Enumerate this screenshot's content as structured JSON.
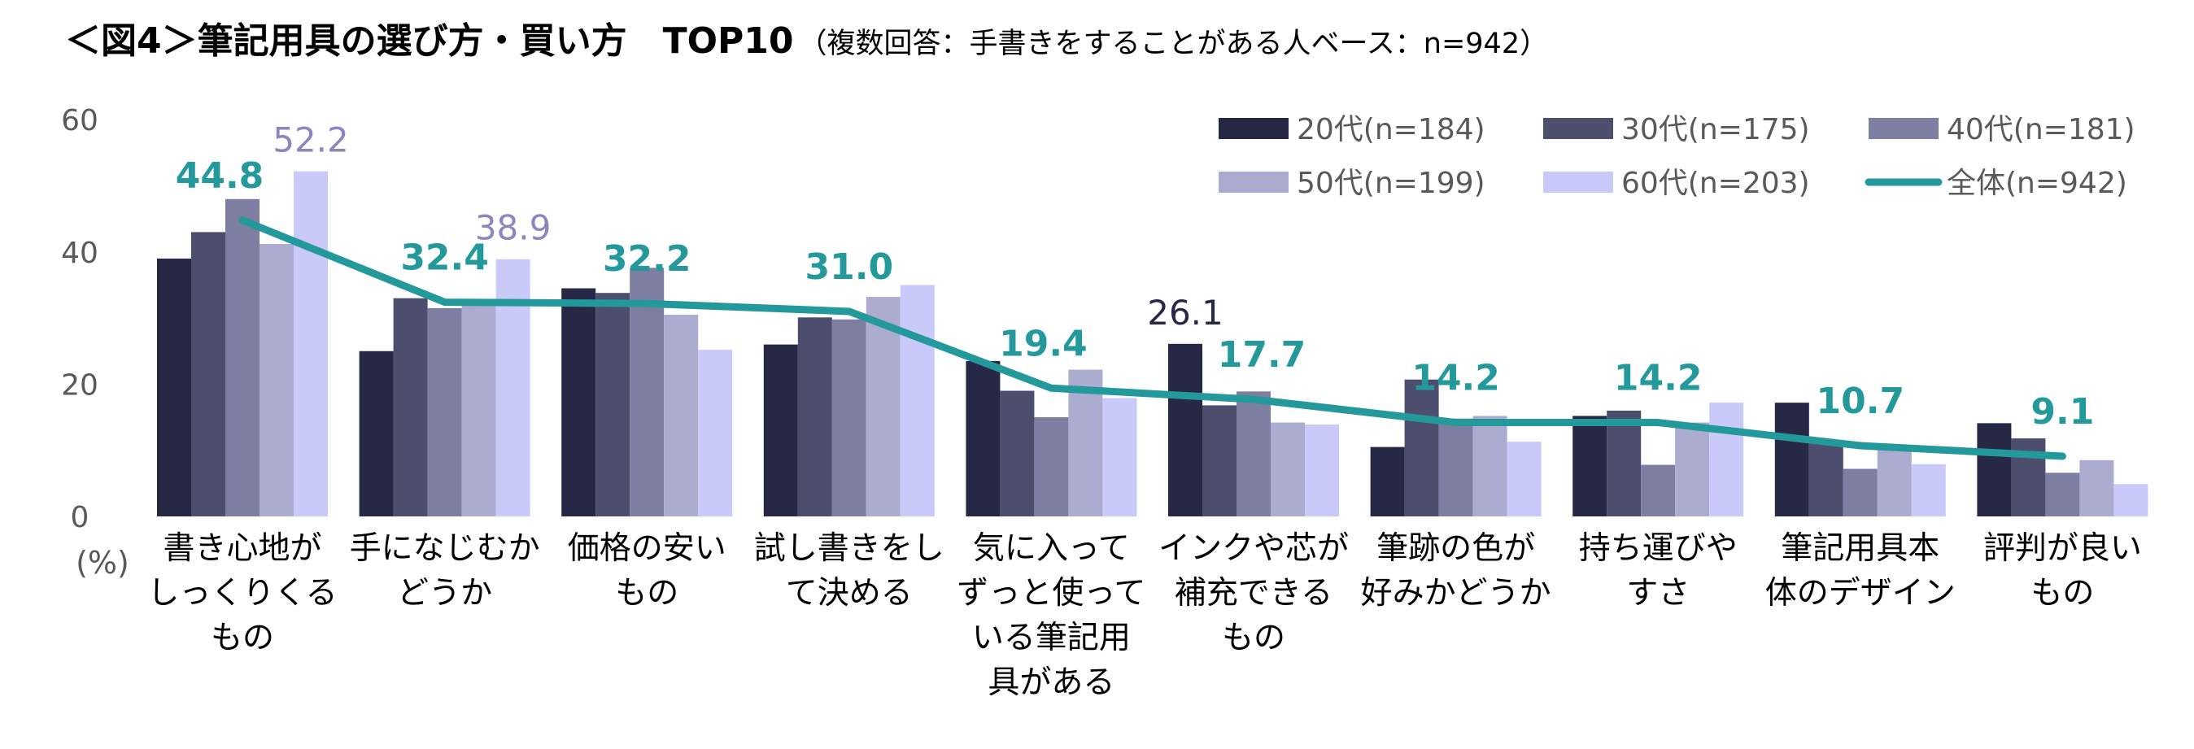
{
  "header": {
    "title": "＜図4＞筆記用具の選び方・買い方　TOP10",
    "subtitle": "（複数回答：手書きをすることがある人ベース：n=942）"
  },
  "chart_data": {
    "type": "bar",
    "ylabel": "(%)",
    "ylim": [
      0,
      60
    ],
    "yticks": [
      0,
      20,
      40,
      60
    ],
    "grid": false,
    "legend_position": "top-right",
    "categories": [
      [
        "書き心地が",
        "しっくりくる",
        "もの"
      ],
      [
        "手になじむか",
        "どうか"
      ],
      [
        "価格の安い",
        "もの"
      ],
      [
        "試し書きをし",
        "て決める"
      ],
      [
        "気に入って",
        "ずっと使って",
        "いる筆記用",
        "具がある"
      ],
      [
        "インクや芯が",
        "補充できる",
        "もの"
      ],
      [
        "筆跡の色が",
        "好みかどうか"
      ],
      [
        "持ち運びや",
        "すさ"
      ],
      [
        "筆記用具本",
        "体のデザイン"
      ],
      [
        "評判が良い",
        "もの"
      ]
    ],
    "series": [
      {
        "name": "20代(n=184)",
        "color": "#262845",
        "values": [
          39,
          25,
          34.5,
          26,
          23.5,
          26.1,
          10.5,
          15.2,
          17.2,
          14.1
        ]
      },
      {
        "name": "30代(n=175)",
        "color": "#4d4d6e",
        "values": [
          43,
          33,
          33.8,
          30.1,
          19,
          16.8,
          20.7,
          16,
          11.2,
          11.8
        ]
      },
      {
        "name": "40代(n=181)",
        "color": "#7e7ea3",
        "values": [
          48,
          31.5,
          37.6,
          29.8,
          15,
          18.9,
          14.8,
          7.8,
          7.2,
          6.6
        ]
      },
      {
        "name": "50代(n=199)",
        "color": "#acacd0",
        "values": [
          41.2,
          32.3,
          30.5,
          33.2,
          22.2,
          14.2,
          15.2,
          14.2,
          10.2,
          8.5
        ]
      },
      {
        "name": "60代(n=203)",
        "color": "#c9c9fa",
        "values": [
          52.2,
          38.9,
          25.2,
          35,
          17.9,
          13.9,
          11.3,
          17.2,
          7.9,
          4.9
        ]
      }
    ],
    "total": {
      "name": "全体(n=942)",
      "color": "#23999c",
      "values": [
        44.8,
        32.4,
        32.2,
        31.0,
        19.4,
        17.7,
        14.2,
        14.2,
        10.7,
        9.1
      ]
    },
    "annotations": [
      {
        "text": "52.2",
        "series": 4,
        "category": 0,
        "color": "#8a86c0"
      },
      {
        "text": "38.9",
        "series": 4,
        "category": 1,
        "color": "#8a86c0"
      },
      {
        "text": "26.1",
        "series": 0,
        "category": 5,
        "color": "#262845"
      }
    ]
  }
}
